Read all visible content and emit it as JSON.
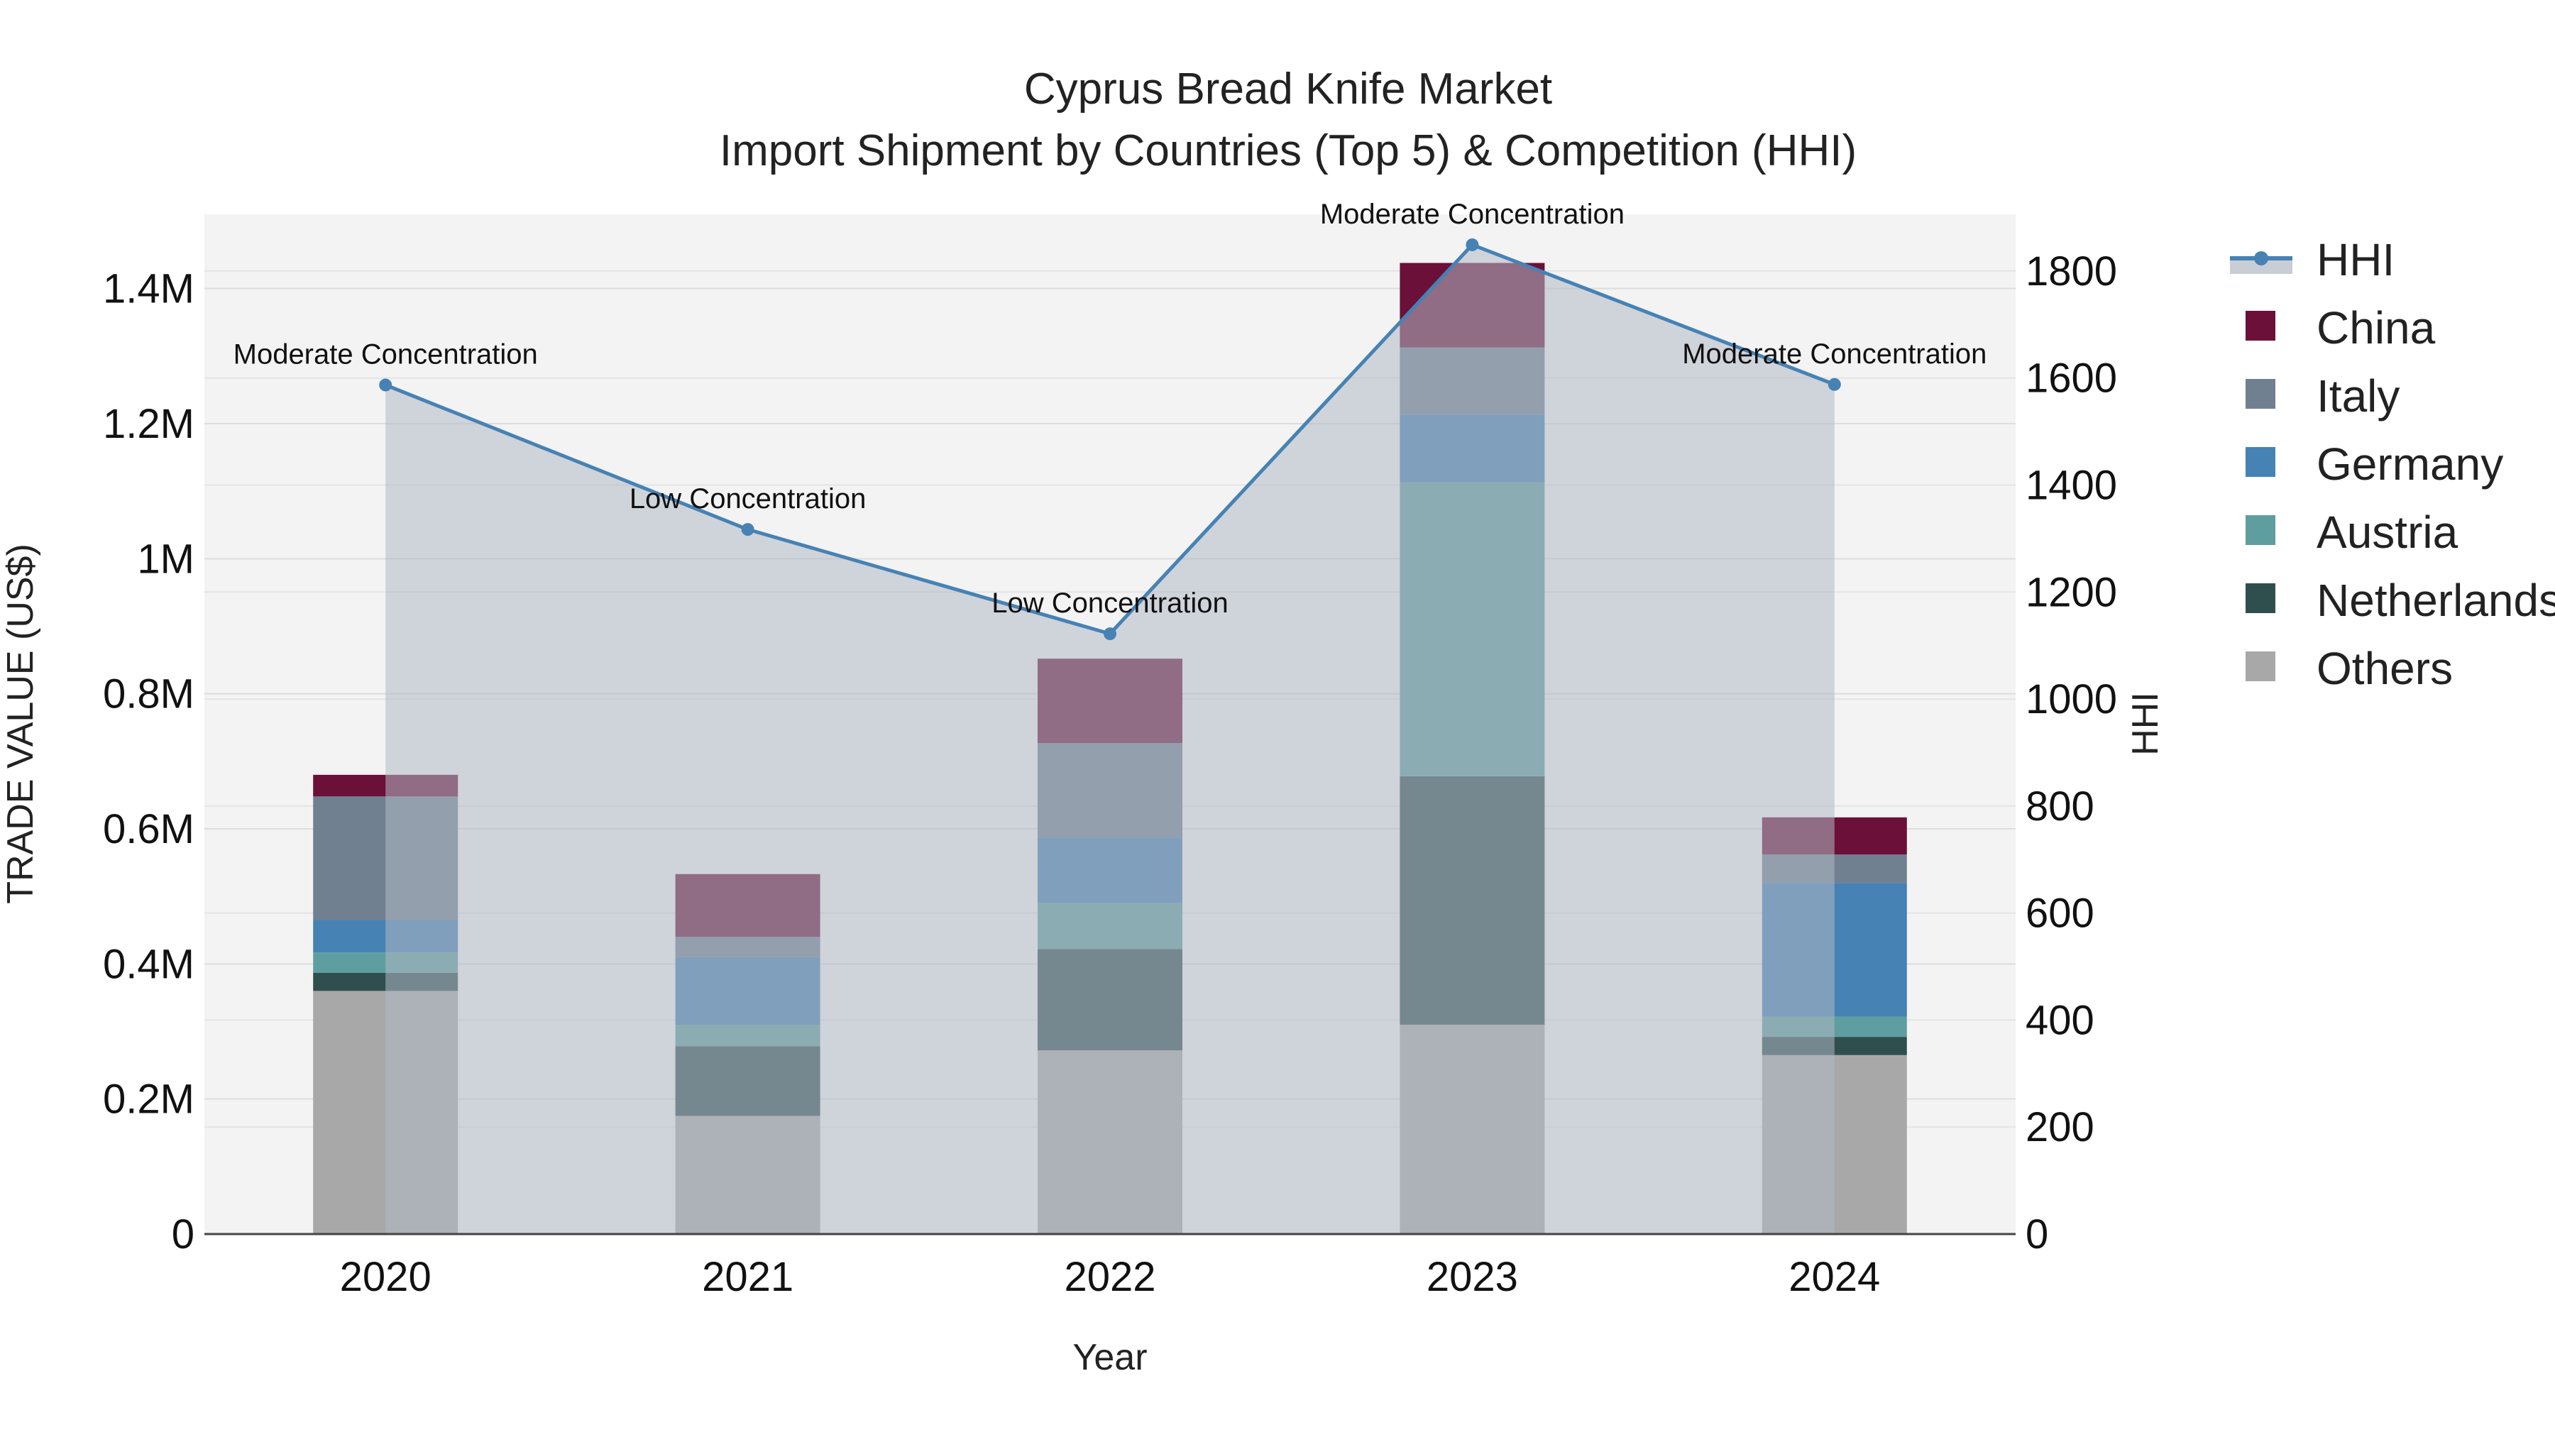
{
  "chart_data": {
    "type": "bar",
    "title": "Cyprus Bread Knife Market",
    "subtitle": "Import Shipment by Countries (Top 5) & Competition (HHI)",
    "xlabel": "Year",
    "ylabel": "TRADE VALUE (US$)",
    "y2label": "HHI",
    "categories": [
      "2020",
      "2021",
      "2022",
      "2023",
      "2024"
    ],
    "ylim": [
      0,
      1510000
    ],
    "y2lim": [
      0,
      1906
    ],
    "yticks": [
      {
        "value": 0,
        "label": "0"
      },
      {
        "value": 200000,
        "label": "0.2M"
      },
      {
        "value": 400000,
        "label": "0.4M"
      },
      {
        "value": 600000,
        "label": "0.6M"
      },
      {
        "value": 800000,
        "label": "0.8M"
      },
      {
        "value": 1000000,
        "label": "1M"
      },
      {
        "value": 1200000,
        "label": "1.2M"
      },
      {
        "value": 1400000,
        "label": "1.4M"
      }
    ],
    "y2ticks": [
      {
        "value": 0,
        "label": "0"
      },
      {
        "value": 200,
        "label": "200"
      },
      {
        "value": 400,
        "label": "400"
      },
      {
        "value": 600,
        "label": "600"
      },
      {
        "value": 800,
        "label": "800"
      },
      {
        "value": 1000,
        "label": "1000"
      },
      {
        "value": 1200,
        "label": "1200"
      },
      {
        "value": 1400,
        "label": "1400"
      },
      {
        "value": 1600,
        "label": "1600"
      },
      {
        "value": 1800,
        "label": "1800"
      }
    ],
    "series": [
      {
        "name": "Others",
        "color": "#a8a8a8",
        "values": [
          360000,
          175000,
          272000,
          310000,
          265000
        ]
      },
      {
        "name": "Netherlands",
        "color": "#2f4f4f",
        "values": [
          27000,
          103000,
          150000,
          368000,
          27000
        ]
      },
      {
        "name": "Austria",
        "color": "#5f9ea0",
        "values": [
          30000,
          32000,
          68000,
          435000,
          30000
        ]
      },
      {
        "name": "Germany",
        "color": "#4682b4",
        "values": [
          48000,
          100000,
          97000,
          100000,
          198000
        ]
      },
      {
        "name": "Italy",
        "color": "#708090",
        "values": [
          183000,
          30000,
          140000,
          100000,
          42000
        ]
      },
      {
        "name": "China",
        "color": "#6b1038",
        "values": [
          32000,
          93000,
          125000,
          125000,
          55000
        ]
      }
    ],
    "hhi": {
      "name": "HHI",
      "color": "#4682b4",
      "values": [
        1587,
        1317,
        1122,
        1849,
        1588
      ],
      "annotations": [
        "Moderate Concentration",
        "Low Concentration",
        "Low Concentration",
        "Moderate Concentration",
        "Moderate Concentration"
      ]
    },
    "legend": [
      "HHI",
      "China",
      "Italy",
      "Germany",
      "Austria",
      "Netherlands",
      "Others"
    ],
    "legend_position": "top-right"
  }
}
